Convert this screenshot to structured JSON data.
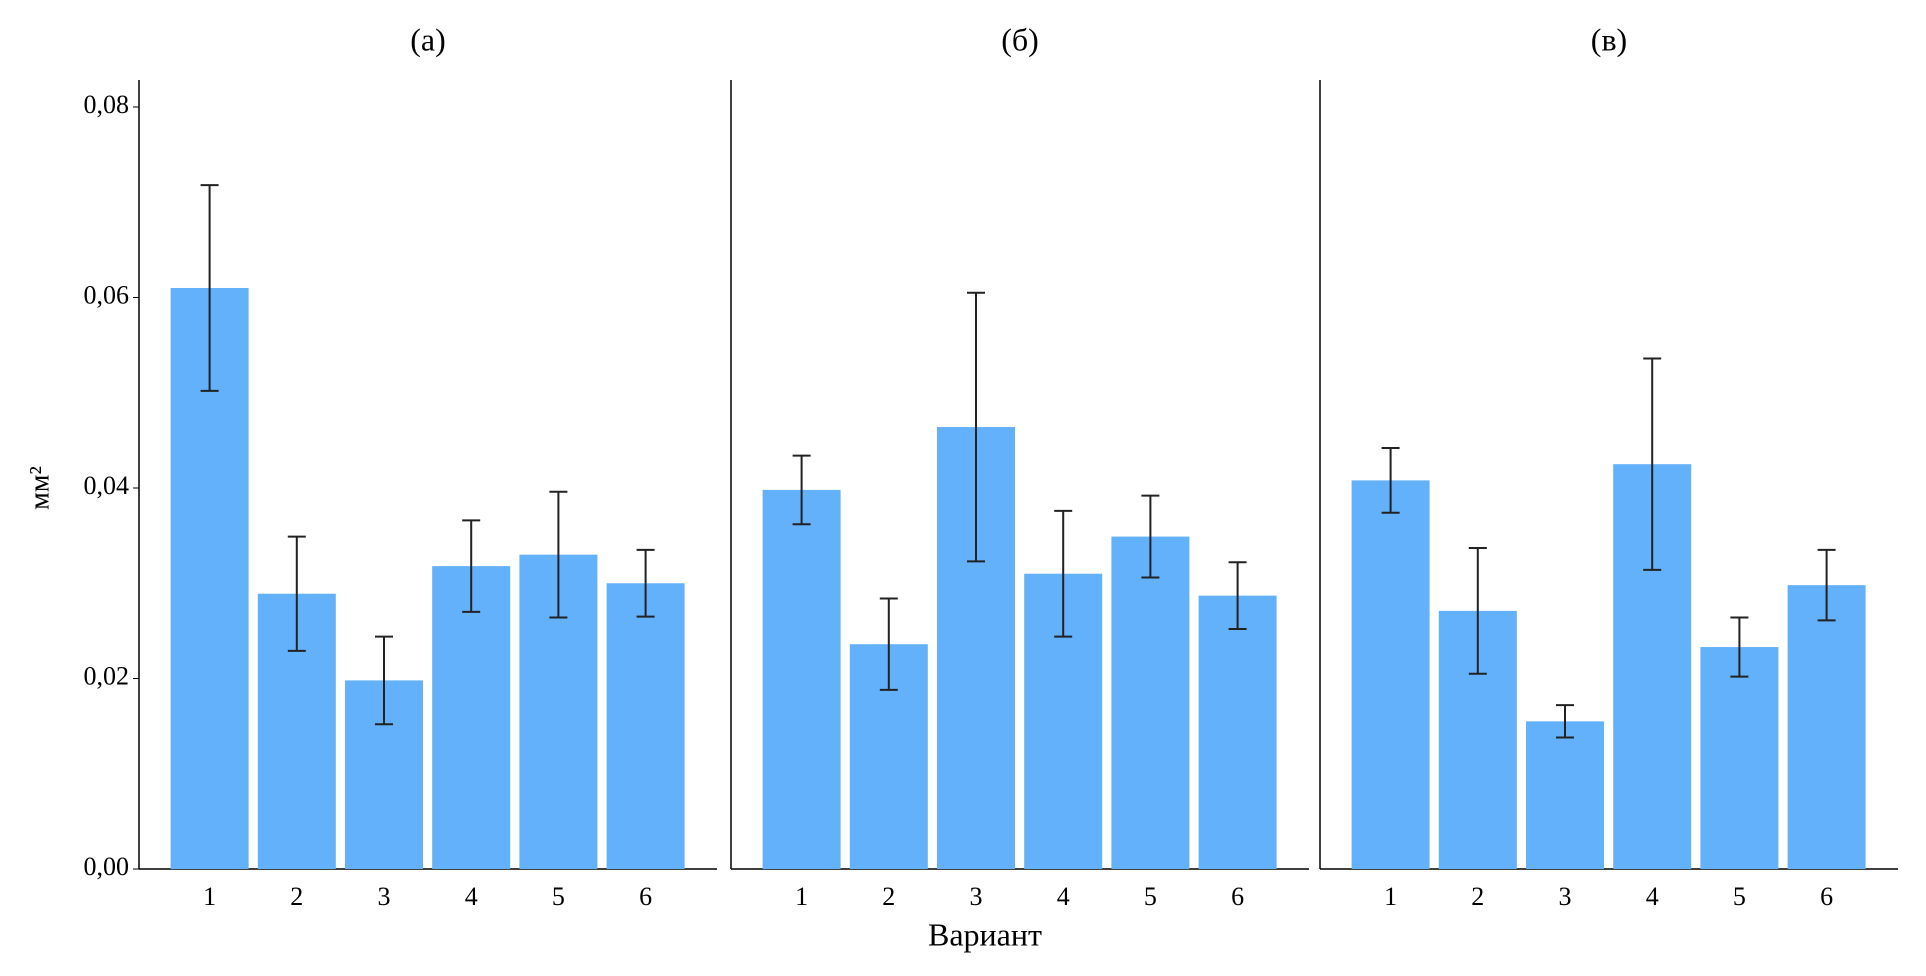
{
  "chart_data": [
    {
      "type": "bar",
      "title": "(а)",
      "ylabel": "мм²",
      "categories": [
        "1",
        "2",
        "3",
        "4",
        "5",
        "6"
      ],
      "values": [
        0.061,
        0.0289,
        0.0198,
        0.0318,
        0.033,
        0.03
      ],
      "errors": [
        0.0108,
        0.006,
        0.0046,
        0.0048,
        0.0066,
        0.0035
      ],
      "color": "#63b0fb",
      "ylim": [
        0,
        0.08
      ],
      "yticks": [
        {
          "value": 0,
          "label": "0,00"
        },
        {
          "value": 0.02,
          "label": "0,02"
        },
        {
          "value": 0.04,
          "label": "0,04"
        },
        {
          "value": 0.06,
          "label": "0,06"
        },
        {
          "value": 0.08,
          "label": "0,08"
        }
      ]
    },
    {
      "type": "bar",
      "title": "(б)",
      "xlabel": "Вариант",
      "categories": [
        "1",
        "2",
        "3",
        "4",
        "5",
        "6"
      ],
      "values": [
        0.0398,
        0.0236,
        0.0464,
        0.031,
        0.0349,
        0.0287
      ],
      "errors": [
        0.0036,
        0.0048,
        0.0141,
        0.0066,
        0.0043,
        0.0035
      ],
      "color": "#63b0fb",
      "ylim": [
        0,
        0.08
      ]
    },
    {
      "type": "bar",
      "title": "(в)",
      "categories": [
        "1",
        "2",
        "3",
        "4",
        "5",
        "6"
      ],
      "values": [
        0.0408,
        0.0271,
        0.0155,
        0.0425,
        0.0233,
        0.0298
      ],
      "errors": [
        0.0034,
        0.0066,
        0.0017,
        0.0111,
        0.0031,
        0.0037
      ],
      "color": "#63b0fb",
      "ylim": [
        0,
        0.08
      ]
    }
  ]
}
